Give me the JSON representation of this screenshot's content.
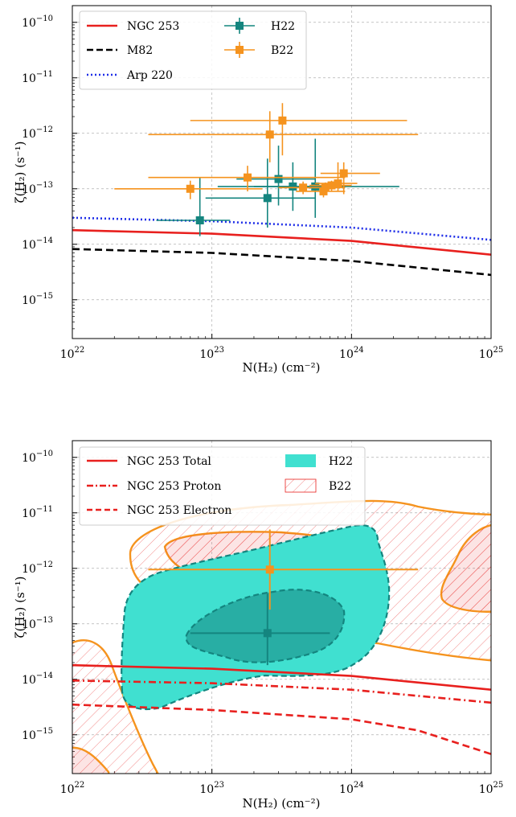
{
  "chart_data": [
    {
      "type": "scatter",
      "panel": "top",
      "xscale": "log",
      "yscale": "log",
      "xlim": [
        1e+22,
        1e+25
      ],
      "ylim": [
        2e-16,
        2e-10
      ],
      "xlabel": "N(H₂) (cm⁻²)",
      "ylabel": "ζ(H₂) (s⁻¹)",
      "xticks": [
        {
          "base": "10",
          "exp": "22",
          "value": 1e+22
        },
        {
          "base": "10",
          "exp": "23",
          "value": 1e+23
        },
        {
          "base": "10",
          "exp": "24",
          "value": 1e+24
        },
        {
          "base": "10",
          "exp": "25",
          "value": 1e+25
        }
      ],
      "yticks": [
        {
          "base": "10",
          "exp": "−15",
          "value": 1e-15
        },
        {
          "base": "10",
          "exp": "−14",
          "value": 1e-14
        },
        {
          "base": "10",
          "exp": "−13",
          "value": 1e-13
        },
        {
          "base": "10",
          "exp": "−12",
          "value": 1e-12
        },
        {
          "base": "10",
          "exp": "−11",
          "value": 1e-11
        },
        {
          "base": "10",
          "exp": "−10",
          "value": 1e-10
        }
      ],
      "grid": true,
      "legend_position": "top-left",
      "series": [
        {
          "name": "NGC 253",
          "kind": "line",
          "style": "solid",
          "color": "#e8201e",
          "x": [
            1e+22,
            1e+23,
            1e+24,
            1e+25
          ],
          "y": [
            1.8e-14,
            1.55e-14,
            1.15e-14,
            6.5e-15
          ]
        },
        {
          "name": "M82",
          "kind": "line",
          "style": "dashed",
          "color": "#000000",
          "x": [
            1e+22,
            1e+23,
            1e+24,
            1e+25
          ],
          "y": [
            8.2e-15,
            7e-15,
            5e-15,
            2.8e-15
          ]
        },
        {
          "name": "Arp 220",
          "kind": "line",
          "style": "dotted",
          "color": "#1f2ee8",
          "x": [
            1e+22,
            1e+23,
            1e+24,
            1e+25
          ],
          "y": [
            3e-14,
            2.6e-14,
            2e-14,
            1.2e-14
          ]
        },
        {
          "name": "H22",
          "kind": "errorbar",
          "color": "#14857f",
          "points": [
            {
              "x": 8.2e+22,
              "y": 2.7e-14,
              "xlo": 4e+22,
              "xhi": 1.35e+23,
              "ylo": 1.4e-14,
              "yhi": 1.6e-13
            },
            {
              "x": 2.5e+23,
              "y": 6.8e-14,
              "xlo": 9e+22,
              "xhi": 5.5e+23,
              "ylo": 2e-14,
              "yhi": 3.5e-13
            },
            {
              "x": 3e+23,
              "y": 1.5e-13,
              "xlo": 1.5e+23,
              "xhi": 5.5e+23,
              "ylo": 5e-14,
              "yhi": 6e-13
            },
            {
              "x": 3.8e+23,
              "y": 1.1e-13,
              "xlo": 1.1e+23,
              "xhi": 2.2e+24,
              "ylo": 4e-14,
              "yhi": 3e-13
            },
            {
              "x": 5.5e+23,
              "y": 1.1e-13,
              "xlo": 2e+23,
              "xhi": 9e+23,
              "ylo": 3e-14,
              "yhi": 8e-13
            }
          ]
        },
        {
          "name": "B22",
          "kind": "errorbar",
          "color": "#f5931e",
          "points": [
            {
              "x": 7e+22,
              "y": 1e-13,
              "xlo": 2e+22,
              "xhi": 2.3e+23,
              "ylo": 6.5e-14,
              "yhi": 1.4e-13
            },
            {
              "x": 1.8e+23,
              "y": 1.6e-13,
              "xlo": 3.5e+22,
              "xhi": 9e+23,
              "ylo": 9e-14,
              "yhi": 2.6e-13
            },
            {
              "x": 2.6e+23,
              "y": 9.5e-13,
              "xlo": 3.5e+22,
              "xhi": 3e+24,
              "ylo": 3e-13,
              "yhi": 2.5e-12
            },
            {
              "x": 3.2e+23,
              "y": 1.7e-12,
              "xlo": 7e+22,
              "xhi": 2.5e+24,
              "ylo": 4e-13,
              "yhi": 3.5e-12
            },
            {
              "x": 4.5e+23,
              "y": 1.05e-13,
              "xlo": 3e+23,
              "xhi": 8e+23,
              "ylo": 8e-14,
              "yhi": 1.35e-13
            },
            {
              "x": 6.3e+23,
              "y": 9e-14,
              "xlo": 4e+23,
              "xhi": 9e+23,
              "ylo": 7e-14,
              "yhi": 1.25e-13
            },
            {
              "x": 6.5e+23,
              "y": 1.05e-13,
              "xlo": 4e+23,
              "xhi": 9e+23,
              "ylo": 8e-14,
              "yhi": 1.3e-13
            },
            {
              "x": 7.2e+23,
              "y": 1.15e-13,
              "xlo": 5e+23,
              "xhi": 1e+24,
              "ylo": 9e-14,
              "yhi": 1.4e-13
            },
            {
              "x": 8e+23,
              "y": 1.25e-13,
              "xlo": 5.5e+23,
              "xhi": 1.1e+24,
              "ylo": 9e-14,
              "yhi": 3e-13
            },
            {
              "x": 8.8e+23,
              "y": 1.9e-13,
              "xlo": 6e+23,
              "xhi": 1.6e+24,
              "ylo": 8e-14,
              "yhi": 3e-13
            }
          ]
        }
      ]
    },
    {
      "type": "scatter",
      "panel": "bottom",
      "xscale": "log",
      "yscale": "log",
      "xlim": [
        1e+22,
        1e+25
      ],
      "ylim": [
        2e-16,
        2e-10
      ],
      "xlabel": "N(H₂) (cm⁻²)",
      "ylabel": "ζ(H₂) (s⁻¹)",
      "xticks": [
        {
          "base": "10",
          "exp": "22",
          "value": 1e+22
        },
        {
          "base": "10",
          "exp": "23",
          "value": 1e+23
        },
        {
          "base": "10",
          "exp": "24",
          "value": 1e+24
        },
        {
          "base": "10",
          "exp": "25",
          "value": 1e+25
        }
      ],
      "yticks": [
        {
          "base": "10",
          "exp": "−15",
          "value": 1e-15
        },
        {
          "base": "10",
          "exp": "−14",
          "value": 1e-14
        },
        {
          "base": "10",
          "exp": "−13",
          "value": 1e-13
        },
        {
          "base": "10",
          "exp": "−12",
          "value": 1e-12
        },
        {
          "base": "10",
          "exp": "−11",
          "value": 1e-11
        },
        {
          "base": "10",
          "exp": "−10",
          "value": 1e-10
        }
      ],
      "grid": true,
      "legend_position": "top-left",
      "series": [
        {
          "name": "NGC 253 Total",
          "kind": "line",
          "style": "solid",
          "color": "#e8201e",
          "x": [
            1e+22,
            1e+23,
            1e+24,
            1e+25
          ],
          "y": [
            1.8e-14,
            1.55e-14,
            1.15e-14,
            6.5e-15
          ]
        },
        {
          "name": "NGC 253 Proton",
          "kind": "line",
          "style": "dashdot",
          "color": "#e8201e",
          "x": [
            1e+22,
            1e+23,
            1e+24,
            1e+25
          ],
          "y": [
            9.5e-15,
            8.5e-15,
            6.5e-15,
            3.8e-15
          ]
        },
        {
          "name": "NGC 253 Electron",
          "kind": "line",
          "style": "dashed",
          "color": "#e8201e",
          "x": [
            1e+22,
            1e+23,
            1e+24,
            3e+24,
            1e+25
          ],
          "y": [
            3.5e-15,
            2.8e-15,
            1.9e-15,
            1.2e-15,
            4.5e-16
          ]
        },
        {
          "name": "H22",
          "kind": "contour_fill",
          "color": "#40e0d0",
          "edge": "#14857f",
          "outer": [
            [
              2.2e+22,
              2.5e-15
            ],
            [
              2.3e+22,
              3e-14
            ],
            [
              2.8e+22,
              7e-14
            ],
            [
              5e+22,
              2e-13
            ],
            [
              1e+23,
              3.5e-13
            ],
            [
              2e+23,
              7e-13
            ],
            [
              4e+23,
              1.5e-12
            ],
            [
              7e+23,
              2.2e-12
            ],
            [
              9e+23,
              2e-12
            ],
            [
              1e+24,
              1.3e-12
            ],
            [
              1.05e+24,
              6e-13
            ],
            [
              1e+24,
              2e-13
            ],
            [
              8e+23,
              7e-14
            ],
            [
              5e+23,
              3.5e-14
            ],
            [
              2.5e+23,
              2.5e-14
            ],
            [
              1.5e+23,
              2e-14
            ],
            [
              9e+22,
              8e-15
            ],
            [
              6e+22,
              3.5e-15
            ],
            [
              3.5e+22,
              2.5e-15
            ]
          ],
          "inner": [
            [
              8e+22,
              6e-14
            ],
            [
              1.5e+23,
              1.5e-13
            ],
            [
              2.5e+23,
              3e-13
            ],
            [
              3.5e+23,
              3.5e-13
            ],
            [
              5e+23,
              3e-13
            ],
            [
              6.5e+23,
              1.8e-13
            ],
            [
              6.5e+23,
              8e-14
            ],
            [
              5e+23,
              3.5e-14
            ],
            [
              3e+23,
              2e-14
            ],
            [
              2e+23,
              2.5e-14
            ],
            [
              1e+23,
              4e-14
            ]
          ],
          "point": {
            "x": 2.5e+23,
            "y": 6.8e-14,
            "xlo": 7e+22,
            "xhi": 7e+23,
            "ylo": 1.8e-14,
            "yhi": 3.5e-13
          }
        },
        {
          "name": "B22",
          "kind": "contour_hatch",
          "color": "#f5931e",
          "hatch": "#e8201e",
          "point": {
            "x": 2.6e+23,
            "y": 9.5e-13,
            "xlo": 3.5e+22,
            "xhi": 3e+24,
            "ylo": 1.8e-13,
            "yhi": 5e-12
          }
        }
      ]
    }
  ]
}
